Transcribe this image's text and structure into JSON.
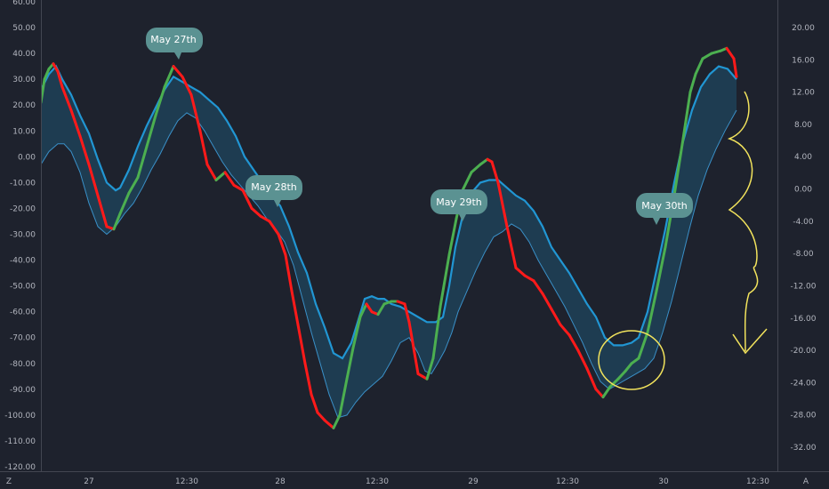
{
  "chart_data": {
    "type": "line",
    "y_left": {
      "range": [
        -120,
        60
      ],
      "ticks": [
        "60.00",
        "50.00",
        "40.00",
        "30.00",
        "20.00",
        "10.00",
        "0.00",
        "-10.00",
        "-20.00",
        "-30.00",
        "-40.00",
        "-50.00",
        "-60.00",
        "-70.00",
        "-80.00",
        "-90.00",
        "-100.00",
        "-110.00",
        "-120.00"
      ]
    },
    "y_right": {
      "range": [
        -36,
        24
      ],
      "ticks": [
        "20.00",
        "16.00",
        "12.00",
        "8.00",
        "4.00",
        "0.00",
        "-4.00",
        "-8.00",
        "-12.00",
        "-16.00",
        "-20.00",
        "-24.00",
        "-28.00",
        "-32.00"
      ]
    },
    "x_ticks": [
      "27",
      "12:30",
      "28",
      "12:30",
      "29",
      "12:30",
      "30",
      "12:30"
    ],
    "corner_labels": {
      "left": "Z",
      "right": "A"
    },
    "grid": false,
    "colors": {
      "background": "#1e222d",
      "axis_text": "#b2b5be",
      "blue": "#2196d3",
      "thin": "#3a90c8",
      "fill": "#1f5d7f",
      "green": "#4caf50",
      "red": "#ff1a1a",
      "bubble": "#5b9292",
      "annotation": "#f2e35c"
    },
    "callouts": [
      "May 27th",
      "May 28th",
      "May 29th",
      "May 30th"
    ],
    "series": [
      {
        "role": "oscillator",
        "values": [
          [
            46,
            21
          ],
          [
            50,
            30
          ],
          [
            55,
            34
          ],
          [
            60,
            36
          ],
          [
            65,
            33
          ],
          [
            70,
            27
          ],
          [
            80,
            18
          ],
          [
            90,
            8
          ],
          [
            100,
            -3
          ],
          [
            110,
            -15
          ],
          [
            120,
            -27
          ],
          [
            128,
            -28
          ],
          [
            135,
            -22
          ],
          [
            145,
            -14
          ],
          [
            155,
            -8
          ],
          [
            165,
            4
          ],
          [
            175,
            16
          ],
          [
            185,
            27
          ],
          [
            195,
            35
          ],
          [
            205,
            31
          ],
          [
            215,
            24
          ],
          [
            225,
            10
          ],
          [
            233,
            -3
          ],
          [
            243,
            -9
          ],
          [
            253,
            -6
          ],
          [
            263,
            -11
          ],
          [
            273,
            -13
          ],
          [
            283,
            -20
          ],
          [
            293,
            -23
          ],
          [
            303,
            -25
          ],
          [
            313,
            -30
          ],
          [
            321,
            -38
          ],
          [
            328,
            -52
          ],
          [
            335,
            -65
          ],
          [
            343,
            -80
          ],
          [
            350,
            -92
          ],
          [
            357,
            -99
          ],
          [
            365,
            -102
          ],
          [
            375,
            -105
          ],
          [
            382,
            -100
          ],
          [
            390,
            -86
          ],
          [
            397,
            -74
          ],
          [
            405,
            -62
          ],
          [
            412,
            -57
          ],
          [
            418,
            -60
          ],
          [
            425,
            -61
          ],
          [
            432,
            -57
          ],
          [
            440,
            -56
          ],
          [
            447,
            -56
          ],
          [
            455,
            -57
          ],
          [
            460,
            -64
          ],
          [
            465,
            -74
          ],
          [
            470,
            -84
          ],
          [
            475,
            -85
          ],
          [
            480,
            -86
          ],
          [
            487,
            -78
          ],
          [
            495,
            -58
          ],
          [
            505,
            -38
          ],
          [
            513,
            -24
          ],
          [
            520,
            -13
          ],
          [
            530,
            -6
          ],
          [
            540,
            -3
          ],
          [
            548,
            -1
          ],
          [
            553,
            -2
          ],
          [
            560,
            -10
          ],
          [
            570,
            -27
          ],
          [
            580,
            -43
          ],
          [
            590,
            -46
          ],
          [
            600,
            -48
          ],
          [
            610,
            -53
          ],
          [
            620,
            -59
          ],
          [
            630,
            -65
          ],
          [
            640,
            -69
          ],
          [
            650,
            -75
          ],
          [
            660,
            -82
          ],
          [
            670,
            -90
          ],
          [
            678,
            -93
          ],
          [
            686,
            -89
          ],
          [
            695,
            -86
          ],
          [
            703,
            -83
          ],
          [
            710,
            -80
          ],
          [
            718,
            -78
          ],
          [
            728,
            -68
          ],
          [
            738,
            -52
          ],
          [
            748,
            -35
          ],
          [
            758,
            -15
          ],
          [
            768,
            7
          ],
          [
            776,
            25
          ],
          [
            782,
            32
          ],
          [
            790,
            38
          ],
          [
            800,
            40
          ],
          [
            810,
            41
          ],
          [
            817,
            42
          ],
          [
            825,
            38
          ],
          [
            828,
            31
          ]
        ],
        "colors_by_segment": "green rising / red falling"
      },
      {
        "role": "signal_line",
        "values": [
          [
            46,
            26
          ],
          [
            55,
            32
          ],
          [
            63,
            35
          ],
          [
            70,
            30
          ],
          [
            80,
            24
          ],
          [
            90,
            16
          ],
          [
            100,
            9
          ],
          [
            110,
            -1
          ],
          [
            120,
            -10
          ],
          [
            130,
            -13
          ],
          [
            135,
            -12
          ],
          [
            145,
            -5
          ],
          [
            155,
            4
          ],
          [
            165,
            12
          ],
          [
            175,
            19
          ],
          [
            185,
            26
          ],
          [
            195,
            31
          ],
          [
            205,
            29
          ],
          [
            215,
            27
          ],
          [
            225,
            25
          ],
          [
            235,
            22
          ],
          [
            245,
            19
          ],
          [
            255,
            14
          ],
          [
            265,
            8
          ],
          [
            275,
            0
          ],
          [
            285,
            -5
          ],
          [
            295,
            -10
          ],
          [
            305,
            -15
          ],
          [
            315,
            -19
          ],
          [
            325,
            -27
          ],
          [
            335,
            -37
          ],
          [
            345,
            -45
          ],
          [
            355,
            -57
          ],
          [
            365,
            -66
          ],
          [
            375,
            -76
          ],
          [
            385,
            -78
          ],
          [
            395,
            -72
          ],
          [
            403,
            -63
          ],
          [
            410,
            -55
          ],
          [
            418,
            -54
          ],
          [
            425,
            -55
          ],
          [
            432,
            -55
          ],
          [
            440,
            -57
          ],
          [
            450,
            -58
          ],
          [
            460,
            -60
          ],
          [
            470,
            -62
          ],
          [
            480,
            -64
          ],
          [
            490,
            -64
          ],
          [
            498,
            -62
          ],
          [
            505,
            -50
          ],
          [
            512,
            -35
          ],
          [
            520,
            -23
          ],
          [
            530,
            -14
          ],
          [
            540,
            -10
          ],
          [
            550,
            -9
          ],
          [
            560,
            -9
          ],
          [
            570,
            -12
          ],
          [
            580,
            -15
          ],
          [
            590,
            -17
          ],
          [
            600,
            -21
          ],
          [
            610,
            -27
          ],
          [
            620,
            -35
          ],
          [
            630,
            -40
          ],
          [
            640,
            -45
          ],
          [
            650,
            -51
          ],
          [
            660,
            -57
          ],
          [
            670,
            -62
          ],
          [
            680,
            -70
          ],
          [
            690,
            -73
          ],
          [
            700,
            -73
          ],
          [
            710,
            -72
          ],
          [
            718,
            -70
          ],
          [
            728,
            -60
          ],
          [
            738,
            -44
          ],
          [
            748,
            -28
          ],
          [
            758,
            -10
          ],
          [
            768,
            6
          ],
          [
            778,
            18
          ],
          [
            788,
            27
          ],
          [
            798,
            32
          ],
          [
            808,
            35
          ],
          [
            818,
            34
          ],
          [
            828,
            30
          ]
        ]
      },
      {
        "role": "lower_band",
        "values": [
          [
            46,
            -3
          ],
          [
            55,
            2
          ],
          [
            65,
            5
          ],
          [
            72,
            5
          ],
          [
            80,
            2
          ],
          [
            90,
            -6
          ],
          [
            100,
            -18
          ],
          [
            110,
            -27
          ],
          [
            120,
            -30
          ],
          [
            130,
            -27
          ],
          [
            140,
            -22
          ],
          [
            150,
            -18
          ],
          [
            160,
            -12
          ],
          [
            170,
            -5
          ],
          [
            180,
            1
          ],
          [
            190,
            8
          ],
          [
            200,
            14
          ],
          [
            210,
            17
          ],
          [
            220,
            15
          ],
          [
            230,
            10
          ],
          [
            240,
            4
          ],
          [
            250,
            -2
          ],
          [
            260,
            -7
          ],
          [
            270,
            -11
          ],
          [
            280,
            -15
          ],
          [
            290,
            -19
          ],
          [
            300,
            -24
          ],
          [
            310,
            -28
          ],
          [
            320,
            -33
          ],
          [
            330,
            -42
          ],
          [
            340,
            -55
          ],
          [
            350,
            -68
          ],
          [
            360,
            -80
          ],
          [
            370,
            -92
          ],
          [
            380,
            -101
          ],
          [
            390,
            -100
          ],
          [
            400,
            -95
          ],
          [
            410,
            -91
          ],
          [
            420,
            -88
          ],
          [
            430,
            -85
          ],
          [
            440,
            -79
          ],
          [
            450,
            -72
          ],
          [
            460,
            -70
          ],
          [
            470,
            -76
          ],
          [
            478,
            -83
          ],
          [
            485,
            -84
          ],
          [
            492,
            -80
          ],
          [
            500,
            -75
          ],
          [
            508,
            -68
          ],
          [
            515,
            -60
          ],
          [
            525,
            -52
          ],
          [
            535,
            -44
          ],
          [
            545,
            -37
          ],
          [
            555,
            -31
          ],
          [
            565,
            -29
          ],
          [
            575,
            -26
          ],
          [
            585,
            -28
          ],
          [
            595,
            -33
          ],
          [
            605,
            -40
          ],
          [
            615,
            -46
          ],
          [
            625,
            -52
          ],
          [
            635,
            -58
          ],
          [
            645,
            -65
          ],
          [
            655,
            -72
          ],
          [
            665,
            -80
          ],
          [
            675,
            -87
          ],
          [
            685,
            -90
          ],
          [
            695,
            -88
          ],
          [
            705,
            -86
          ],
          [
            715,
            -84
          ],
          [
            725,
            -82
          ],
          [
            735,
            -78
          ],
          [
            745,
            -68
          ],
          [
            755,
            -56
          ],
          [
            765,
            -42
          ],
          [
            775,
            -28
          ],
          [
            785,
            -15
          ],
          [
            795,
            -5
          ],
          [
            805,
            3
          ],
          [
            815,
            10
          ],
          [
            828,
            18
          ]
        ]
      }
    ]
  }
}
